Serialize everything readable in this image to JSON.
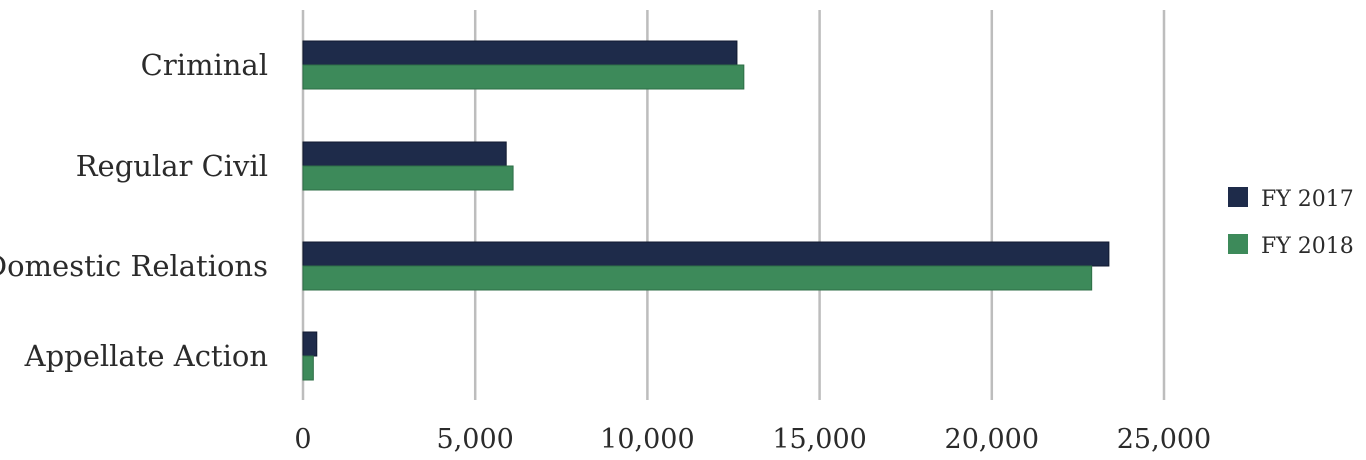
{
  "chart_data": {
    "type": "bar",
    "orientation": "horizontal",
    "categories": [
      "Criminal",
      "Regular Civil",
      "Domestic Relations",
      "Appellate Action"
    ],
    "series": [
      {
        "name": "FY 2017",
        "values": [
          12600,
          5900,
          23400,
          400
        ],
        "color": "#1e2b4a"
      },
      {
        "name": "FY 2018",
        "values": [
          12800,
          6100,
          22900,
          300
        ],
        "color": "#3d8a5a"
      }
    ],
    "xlim": [
      0,
      25000
    ],
    "xticks": [
      0,
      5000,
      10000,
      15000,
      20000,
      25000
    ],
    "xtick_labels": [
      "0",
      "5,000",
      "10,000",
      "15,000",
      "20,000",
      "25,000"
    ],
    "grid": "vertical",
    "legend_position": "right"
  }
}
